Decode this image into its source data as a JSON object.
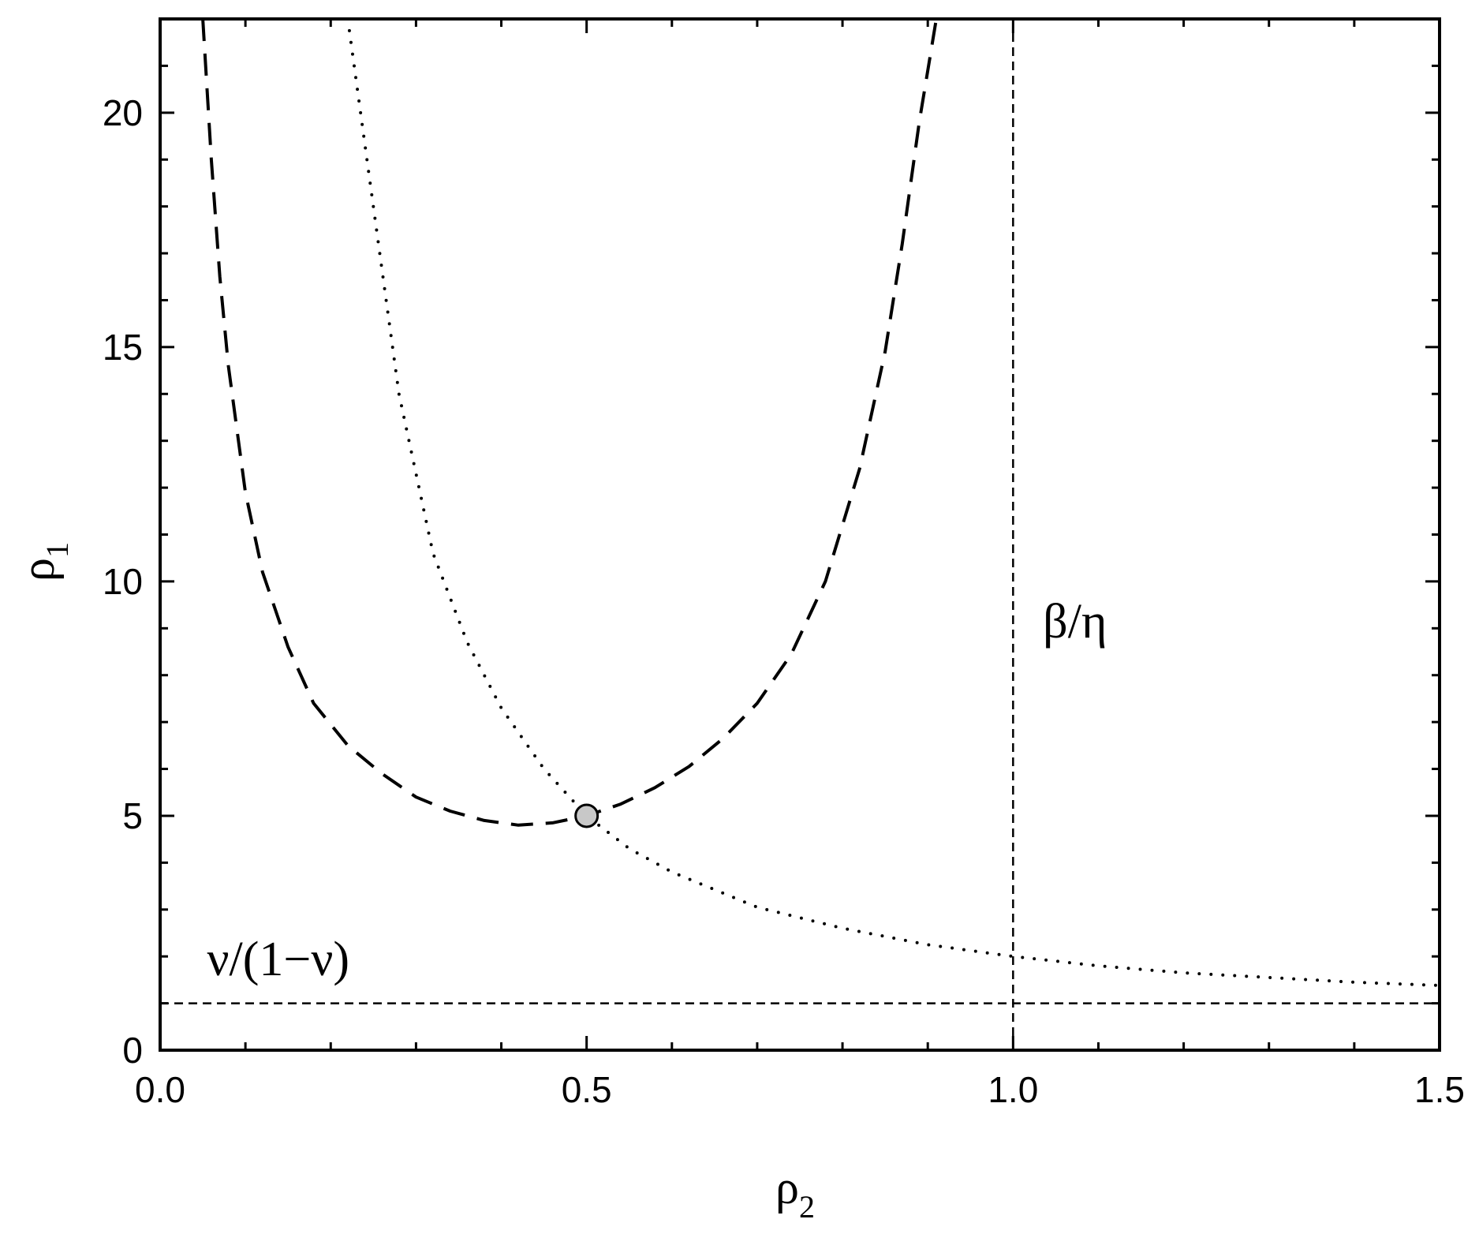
{
  "chart_data": {
    "type": "line",
    "title": "",
    "xlabel": {
      "symbol": "ρ",
      "sub": "2"
    },
    "ylabel": {
      "symbol": "ρ",
      "sub": "1"
    },
    "xlim": [
      0.0,
      1.5
    ],
    "ylim": [
      0,
      22
    ],
    "x_ticks": [
      {
        "value": 0.0,
        "label": "0.0"
      },
      {
        "value": 0.5,
        "label": "0.5"
      },
      {
        "value": 1.0,
        "label": "1.0"
      },
      {
        "value": 1.5,
        "label": "1.5"
      }
    ],
    "x_minor_step": 0.1,
    "y_ticks": [
      {
        "value": 0,
        "label": "0"
      },
      {
        "value": 5,
        "label": "5"
      },
      {
        "value": 10,
        "label": "10"
      },
      {
        "value": 15,
        "label": "15"
      },
      {
        "value": 20,
        "label": "20"
      }
    ],
    "y_minor_step": 1,
    "grid": false,
    "series": [
      {
        "style": "dashed",
        "x": [
          0.05,
          0.06,
          0.07,
          0.08,
          0.1,
          0.12,
          0.15,
          0.18,
          0.22,
          0.26,
          0.3,
          0.34,
          0.38,
          0.42,
          0.46,
          0.5,
          0.54,
          0.58,
          0.62,
          0.66,
          0.7,
          0.74,
          0.78,
          0.82,
          0.85,
          0.87,
          0.89,
          0.91
        ],
        "y": [
          22.0,
          19.0,
          16.5,
          14.6,
          11.9,
          10.2,
          8.6,
          7.4,
          6.5,
          5.9,
          5.4,
          5.1,
          4.9,
          4.8,
          4.85,
          5.0,
          5.25,
          5.6,
          6.05,
          6.65,
          7.4,
          8.45,
          10.0,
          12.4,
          14.9,
          17.2,
          19.8,
          22.0
        ]
      },
      {
        "style": "dotted",
        "x": [
          0.22,
          0.25,
          0.28,
          0.32,
          0.36,
          0.4,
          0.45,
          0.5,
          0.55,
          0.6,
          0.7,
          0.8,
          0.9,
          1.0,
          1.1,
          1.2,
          1.3,
          1.4,
          1.5
        ],
        "y": [
          22.0,
          18.0,
          14.0,
          10.6,
          8.7,
          7.3,
          6.0,
          5.0,
          4.3,
          3.8,
          3.05,
          2.6,
          2.25,
          2.0,
          1.8,
          1.65,
          1.55,
          1.45,
          1.38
        ]
      }
    ],
    "reference_lines": [
      {
        "orientation": "horizontal",
        "value": 1.0,
        "style": "dashed"
      },
      {
        "orientation": "vertical",
        "value": 1.0,
        "style": "dashed"
      }
    ],
    "marker": {
      "x": 0.5,
      "y": 5.0,
      "fill": "#c8c8c8"
    },
    "annotations": [
      {
        "text": "β/η",
        "x": 1.035,
        "y": 8.8
      },
      {
        "text": "ν/(1−ν)",
        "x": 0.055,
        "y": 1.6
      }
    ]
  }
}
